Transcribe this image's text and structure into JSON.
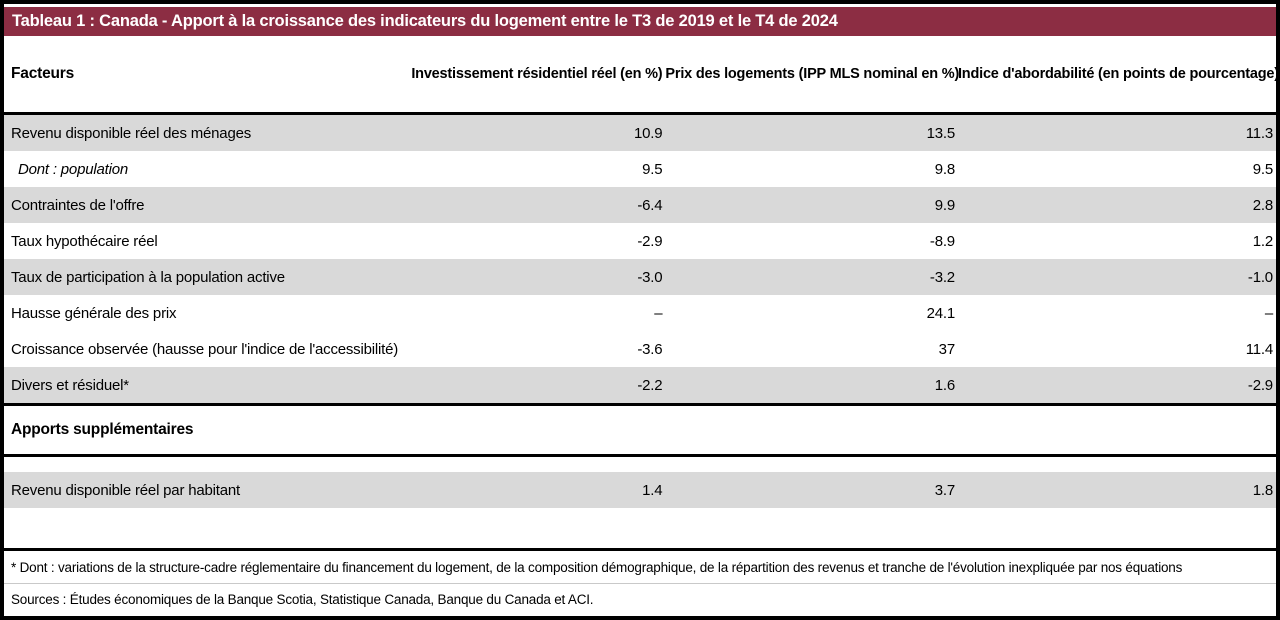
{
  "chart_data": {
    "type": "table",
    "title": "Tableau 1 : Canada - Apport à la croissance des indicateurs du logement entre le T3 de 2019 et le T4 de 2024",
    "columns": [
      "Facteurs",
      "Investissement résidentiel réel (en %)",
      "Prix des logements (IPP MLS nominal en %)",
      "Indice d'abordabilité (en points de pourcentage)"
    ],
    "rows": [
      {
        "label": "Revenu disponible réel des ménages",
        "values": [
          "10.9",
          "13.5",
          "11.3"
        ]
      },
      {
        "label": "Dont : population",
        "values": [
          "9.5",
          "9.8",
          "9.5"
        ]
      },
      {
        "label": "Contraintes de l'offre",
        "values": [
          "-6.4",
          "9.9",
          "2.8"
        ]
      },
      {
        "label": "Taux hypothécaire réel",
        "values": [
          "-2.9",
          "-8.9",
          "1.2"
        ]
      },
      {
        "label": "Taux de participation à la population active",
        "values": [
          "-3.0",
          "-3.2",
          "-1.0"
        ]
      },
      {
        "label": "Hausse générale des prix",
        "values": [
          "–",
          "24.1",
          "–"
        ]
      },
      {
        "label": "Croissance observée (hausse pour l'indice de l'accessibilité)",
        "values": [
          "-3.6",
          "37",
          "11.4"
        ]
      },
      {
        "label": "Divers et résiduel*",
        "values": [
          "-2.2",
          "1.6",
          "-2.9"
        ]
      }
    ],
    "section_title": "Apports supplémentaires",
    "supplementary_rows": [
      {
        "label": "Revenu disponible réel par habitant",
        "values": [
          "1.4",
          "3.7",
          "1.8"
        ]
      }
    ],
    "footnote": "* Dont : variations de la structure-cadre réglementaire du financement du logement, de la composition démographique, de la répartition des revenus et tranche de l'évolution inexpliquée par nos équations",
    "sources": "Sources : Études économiques de la Banque Scotia, Statistique Canada, Banque du Canada et ACI."
  },
  "colors": {
    "title_bar": "#8c2d43",
    "row_shade": "#d9d9d9"
  }
}
